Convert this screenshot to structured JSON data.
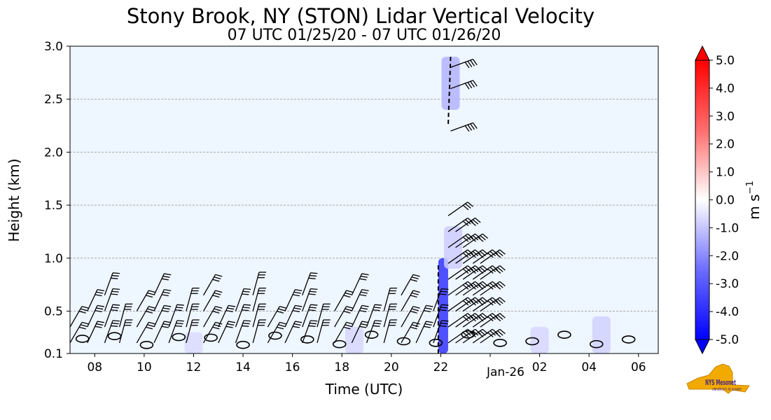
{
  "chart_data": {
    "type": "heatmap",
    "title": "Stony Brook, NY (STON) Lidar Vertical Velocity",
    "subtitle": "07 UTC 01/25/20 - 07 UTC 01/26/20",
    "xlabel": "Time (UTC)",
    "ylabel": "Height (km)",
    "x_range_hours": [
      7.0,
      30.8
    ],
    "x_ticks": [
      {
        "hour": 8,
        "label": "08"
      },
      {
        "hour": 10,
        "label": "10"
      },
      {
        "hour": 12,
        "label": "12"
      },
      {
        "hour": 14,
        "label": "14"
      },
      {
        "hour": 16,
        "label": "16"
      },
      {
        "hour": 18,
        "label": "18"
      },
      {
        "hour": 20,
        "label": "20"
      },
      {
        "hour": 22,
        "label": "22"
      },
      {
        "hour": 24,
        "label": "Jan-26"
      },
      {
        "hour": 26,
        "label": "02"
      },
      {
        "hour": 28,
        "label": "04"
      },
      {
        "hour": 30,
        "label": "06"
      }
    ],
    "ylim": [
      0.1,
      3.0
    ],
    "y_ticks": [
      {
        "v": 0.1,
        "label": "0.1"
      },
      {
        "v": 0.5,
        "label": "0.5"
      },
      {
        "v": 1.0,
        "label": "1.0"
      },
      {
        "v": 1.5,
        "label": "1.5"
      },
      {
        "v": 2.0,
        "label": "2.0"
      },
      {
        "v": 2.5,
        "label": "2.5"
      },
      {
        "v": 3.0,
        "label": "3.0"
      }
    ],
    "grid": "horizontal dashed",
    "colorbar": {
      "label": "m s",
      "label_sup": "−1",
      "min": -5.0,
      "max": 5.0,
      "ticks": [
        "5.0",
        "4.0",
        "3.0",
        "2.0",
        "1.0",
        "0.0",
        "-1.0",
        "-2.0",
        "-3.0",
        "-4.0",
        "-5.0"
      ],
      "colors": [
        "#0000ff",
        "#ffffff",
        "#ff0000"
      ]
    },
    "background_value": -0.1,
    "velocity_features": [
      {
        "hour": 22.1,
        "z0": 0.1,
        "z1": 1.0,
        "w": -4.0
      },
      {
        "hour": 22.4,
        "z0": 2.4,
        "z1": 2.9,
        "w": -1.5
      },
      {
        "hour": 22.5,
        "z0": 0.9,
        "z1": 1.3,
        "w": -1.0
      },
      {
        "hour": 18.5,
        "z0": 0.1,
        "z1": 0.35,
        "w": -0.8
      },
      {
        "hour": 12.0,
        "z0": 0.1,
        "z1": 0.3,
        "w": -0.7
      },
      {
        "hour": 26.0,
        "z0": 0.1,
        "z1": 0.35,
        "w": -0.8
      },
      {
        "hour": 28.5,
        "z0": 0.1,
        "z1": 0.45,
        "w": -0.9
      }
    ],
    "wind_barbs": {
      "boundary_layer_hours": [
        7.0,
        7.7,
        8.4,
        9.0,
        9.7,
        10.4,
        11.0,
        11.7,
        12.4,
        13.0,
        13.7,
        14.4,
        15.0,
        15.7,
        16.4,
        17.0,
        17.7,
        18.4,
        19.0,
        19.7,
        20.4,
        21.0,
        21.7
      ],
      "column_hours": [
        22.3,
        22.6,
        22.9,
        23.3,
        23.6
      ],
      "upper_hours": [
        22.4
      ],
      "upper_heights": [
        2.2,
        2.6,
        2.8
      ],
      "heights": [
        0.2,
        0.35,
        0.5,
        0.65,
        0.8,
        0.95,
        1.1,
        1.25,
        1.4
      ]
    }
  },
  "logo": {
    "text": "NYS Mesonet",
    "subtext": "UNIVERSITY AT ALBANY"
  }
}
